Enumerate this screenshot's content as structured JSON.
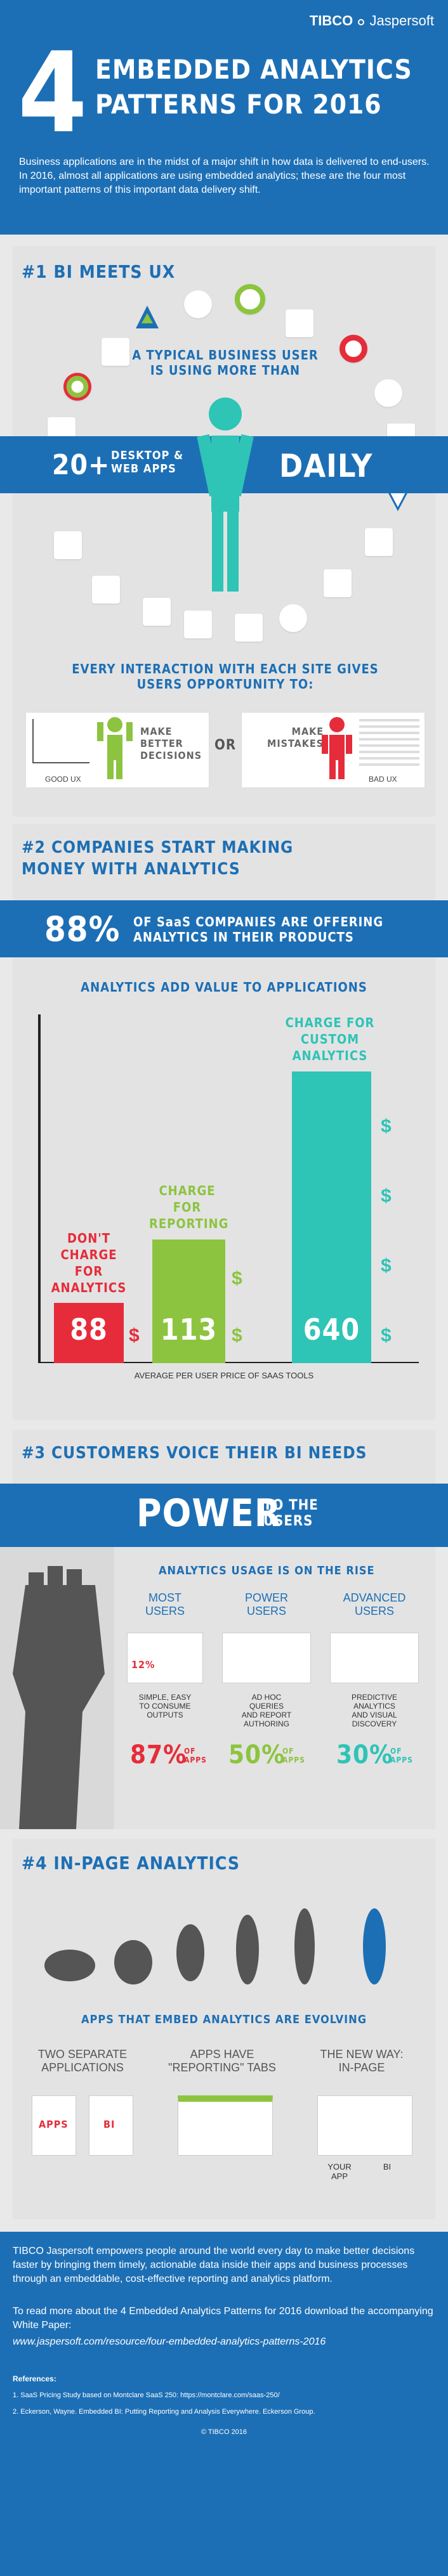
{
  "brand": {
    "tibco": "TIBCO",
    "jaspersoft": "Jaspersoft"
  },
  "header": {
    "number": "4",
    "title_line1": "EMBEDDED ANALYTICS",
    "title_line2": "PATTERNS FOR 2016",
    "intro": "Business applications are in the midst of a major shift in how data is delivered to end-users. In 2016, almost all applications are using embedded analytics; these are the four most important patterns of this important data delivery shift."
  },
  "s1": {
    "label": "#1 BI MEETS UX",
    "typical": "A TYPICAL BUSINESS USER\nIS USING MORE THAN",
    "count": "20+",
    "desktop": "DESKTOP &\nWEB APPS",
    "daily": "DAILY",
    "interaction": "EVERY INTERACTION WITH EACH SITE GIVES\nUSERS OPPORTUNITY TO:",
    "left_text": "MAKE\nBETTER\nDECISIONS",
    "or": "OR",
    "right_text": "MAKE\nMISTAKES",
    "good": "GOOD UX",
    "bad": "BAD UX"
  },
  "s2": {
    "label": "#2 COMPANIES START MAKING\nMONEY WITH ANALYTICS",
    "stat_pct": "88%",
    "stat_text": "OF SaaS COMPANIES ARE OFFERING\nANALYTICS IN THEIR PRODUCTS",
    "chart_title": "ANALYTICS ADD VALUE TO APPLICATIONS",
    "bar1_label": "DON'T\nCHARGE\nFOR\nANALYTICS",
    "bar2_label": "CHARGE\nFOR\nREPORTING",
    "bar3_label": "CHARGE FOR\nCUSTOM\nANALYTICS",
    "bar1_val": "88",
    "bar2_val": "113",
    "bar3_val": "640",
    "avg": "AVERAGE PER USER PRICE OF SAAS TOOLS"
  },
  "s3": {
    "label": "#3 CUSTOMERS VOICE THEIR BI NEEDS",
    "power": "POWER",
    "to_users": "TO THE\nUSERS",
    "rising": "ANALYTICS USAGE IS ON THE RISE",
    "cols": [
      {
        "head": "MOST\nUSERS",
        "desc": "SIMPLE, EASY\nTO CONSUME\nOUTPUTS",
        "pct": "87%"
      },
      {
        "head": "POWER\nUSERS",
        "desc": "AD HOC\nQUERIES\nAND REPORT\nAUTHORING",
        "pct": "50%"
      },
      {
        "head": "ADVANCED\nUSERS",
        "desc": "PREDICTIVE\nANALYTICS\nAND VISUAL\nDISCOVERY",
        "pct": "30%"
      }
    ],
    "of_apps": "OF\nAPPS",
    "chip_pct": "12%"
  },
  "s4": {
    "label": "#4 IN-PAGE ANALYTICS",
    "evolving": "APPS THAT EMBED ANALYTICS ARE EVOLVING",
    "col1": "TWO SEPARATE\nAPPLICATIONS",
    "col2": "APPS HAVE\n\"REPORTING\" TABS",
    "col3": "THE NEW WAY:\nIN-PAGE",
    "apps": "APPS",
    "bi": "BI",
    "your_app": "YOUR\nAPP",
    "bi2": "BI"
  },
  "footer": {
    "p1": "TIBCO Jaspersoft empowers people around the world every day to make better decisions faster by bringing them timely, actionable data inside their apps and business processes through an embeddable, cost-effective reporting and analytics platform.",
    "p2": "To read more about the 4 Embedded Analytics Patterns for 2016 download the accompanying White Paper:",
    "url": "www.jaspersoft.com/resource/four-embedded-analytics-patterns-2016",
    "refs_title": "References:",
    "ref1": "1. SaaS Pricing Study based on Montclare SaaS 250: https://montclare.com/saas-250/",
    "ref2": "2. Eckerson, Wayne. Embedded BI: Putting Reporting and Analysis Everywhere. Eckerson Group.",
    "copyright": "© TIBCO 2016"
  },
  "colors": {
    "blue": "#1d6fb5",
    "green": "#8cc43f",
    "teal": "#2ec4b6",
    "red": "#e62c3a"
  }
}
